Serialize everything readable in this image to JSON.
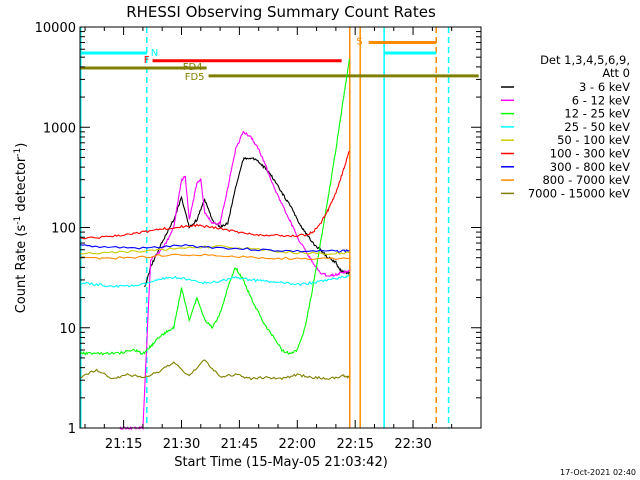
{
  "chart_data": {
    "type": "line",
    "title": "RHESSI Observing Summary Count Rates",
    "xlabel": "Start Time (15-May-05 21:03:42)",
    "ylabel_main": "Count Rate (s",
    "ylabel_sup1": "-1",
    "ylabel_mid": " detector",
    "ylabel_sup2": "-1",
    "ylabel_end": ")",
    "x_ticks": [
      "21:15",
      "21:30",
      "21:45",
      "22:00",
      "22:15",
      "22:30"
    ],
    "x_tick_minutes": [
      15,
      30,
      45,
      60,
      75,
      90
    ],
    "y_ticks": [
      "1",
      "10",
      "100",
      "1000",
      "10000"
    ],
    "y_tick_values": [
      1,
      10,
      100,
      1000,
      10000
    ],
    "xlim_minutes": [
      3.7,
      107.6
    ],
    "ylim": [
      1,
      10000
    ],
    "y_scale": "log",
    "legend_header_1": "Det 1,3,4,5,6,9,",
    "legend_header_2": "Att 0",
    "legend_position": "right",
    "timestamp": "17-Oct-2021 02:40",
    "series": [
      {
        "name": "3 - 6 keV",
        "color": "#000000",
        "x": [
          20.4,
          22,
          24,
          26,
          28,
          30,
          32,
          34,
          36,
          38,
          40,
          42,
          44,
          46,
          48,
          50,
          52,
          54,
          56,
          58,
          60,
          62,
          64,
          66,
          68,
          70,
          71,
          72,
          73.5
        ],
        "y": [
          25,
          40,
          60,
          85,
          120,
          200,
          100,
          120,
          190,
          120,
          100,
          110,
          250,
          480,
          500,
          450,
          380,
          300,
          220,
          170,
          120,
          90,
          70,
          60,
          50,
          45,
          38,
          36,
          35
        ]
      },
      {
        "name": "6 - 12 keV",
        "color": "#ff00ff",
        "x": [
          14,
          16,
          18,
          20,
          22,
          24,
          26,
          28,
          30,
          31,
          32,
          34,
          35,
          36,
          38,
          40,
          42,
          44,
          46,
          48,
          50,
          52,
          54,
          56,
          58,
          60,
          62,
          64,
          66,
          68,
          70,
          72,
          73.5
        ],
        "y": [
          1,
          1,
          1,
          1,
          48,
          55,
          70,
          100,
          300,
          320,
          120,
          280,
          300,
          140,
          110,
          110,
          250,
          600,
          900,
          800,
          600,
          400,
          250,
          170,
          120,
          80,
          60,
          45,
          35,
          33,
          34,
          36,
          37
        ]
      },
      {
        "name": "12 - 25 keV",
        "color": "#00ff00",
        "x": [
          3.7,
          6,
          10,
          14,
          18,
          20,
          22,
          24,
          26,
          28,
          30,
          32,
          34,
          36,
          38,
          40,
          42,
          44,
          46,
          48,
          50,
          52,
          54,
          56,
          58,
          60,
          62,
          64,
          66,
          68,
          70,
          72,
          73,
          73.5
        ],
        "y": [
          5.5,
          5.6,
          5.5,
          5.6,
          6,
          5.5,
          6.5,
          8,
          9,
          10,
          25,
          12,
          20,
          12,
          10,
          14,
          25,
          40,
          30,
          20,
          14,
          10,
          8,
          6,
          5.5,
          6,
          10,
          25,
          70,
          200,
          600,
          2000,
          3500,
          4800
        ]
      },
      {
        "name": "25 - 50 keV",
        "color": "#00ffff",
        "x": [
          3.7,
          8,
          12,
          16,
          20,
          24,
          28,
          32,
          36,
          40,
          44,
          48,
          52,
          56,
          60,
          64,
          68,
          72,
          73.5
        ],
        "y": [
          28,
          27,
          26,
          26,
          27,
          30,
          32,
          30,
          28,
          29,
          32,
          30,
          29,
          28,
          27,
          28,
          30,
          32,
          33
        ]
      },
      {
        "name": "50 - 100 keV",
        "color": "#cccc00",
        "x": [
          3.7,
          10,
          20,
          30,
          40,
          50,
          60,
          70,
          73.5
        ],
        "y": [
          55,
          56,
          58,
          62,
          65,
          60,
          56,
          55,
          56
        ]
      },
      {
        "name": "100 - 300 keV",
        "color": "#ff0000",
        "x": [
          3.7,
          10,
          14,
          18,
          22,
          26,
          30,
          34,
          38,
          42,
          46,
          50,
          54,
          58,
          62,
          64,
          66,
          68,
          70,
          72,
          73.5
        ],
        "y": [
          78,
          80,
          84,
          88,
          92,
          98,
          102,
          105,
          100,
          94,
          88,
          84,
          83,
          82,
          84,
          90,
          110,
          150,
          220,
          380,
          580
        ]
      },
      {
        "name": "300 - 800 keV",
        "color": "#0000ff",
        "x": [
          3.7,
          10,
          20,
          30,
          40,
          50,
          60,
          70,
          73.5
        ],
        "y": [
          66,
          64,
          62,
          66,
          63,
          60,
          58,
          58,
          59
        ]
      },
      {
        "name": "800 - 7000 keV",
        "color": "#ff8c00",
        "x": [
          3.7,
          10,
          20,
          30,
          40,
          50,
          60,
          70,
          73.5
        ],
        "y": [
          50,
          49,
          51,
          54,
          52,
          50,
          49,
          49,
          50
        ]
      },
      {
        "name": "7000 - 15000 keV",
        "color": "#808000",
        "x": [
          3.7,
          8,
          12,
          16,
          20,
          24,
          28,
          32,
          36,
          40,
          44,
          48,
          52,
          56,
          60,
          64,
          68,
          72,
          73.5
        ],
        "y": [
          3.2,
          3.8,
          3.1,
          3.4,
          3.2,
          3.6,
          4.5,
          3.3,
          4.8,
          3.2,
          3.4,
          3.1,
          3.2,
          3.1,
          3.4,
          3.2,
          3.1,
          3.3,
          3.2
        ]
      }
    ],
    "state_bars": [
      {
        "label": "N",
        "color": "#00ffff",
        "y": 5500,
        "segments": [
          [
            3.7,
            21.0
          ],
          [
            82.5,
            96.0
          ]
        ]
      },
      {
        "label": "F",
        "color": "#ff0000",
        "y": 4600,
        "segments": [
          [
            22.5,
            71.5
          ]
        ]
      },
      {
        "label": "FD4",
        "color": "#808000",
        "y": 3900,
        "segments": [
          [
            3.7,
            36.5
          ]
        ]
      },
      {
        "label": "FD5",
        "color": "#808000",
        "y": 3250,
        "segments": [
          [
            37.0,
            107.0
          ]
        ]
      },
      {
        "label": "S",
        "color": "#ff8c00",
        "y": 7000,
        "segments": [
          [
            78.5,
            96.0
          ]
        ]
      }
    ],
    "markers": [
      {
        "color": "#00ffff",
        "style": "solid",
        "x": 3.9
      },
      {
        "color": "#00ffff",
        "style": "dashed",
        "x": 21.0
      },
      {
        "color": "#ff8c00",
        "style": "solid",
        "x": 73.6
      },
      {
        "color": "#ff8c00",
        "style": "solid",
        "x": 76.3
      },
      {
        "color": "#00ffff",
        "style": "solid",
        "x": 82.5
      },
      {
        "color": "#ff8c00",
        "style": "dashed",
        "x": 96.0
      },
      {
        "color": "#00ffff",
        "style": "dashed",
        "x": 99.2
      }
    ]
  }
}
